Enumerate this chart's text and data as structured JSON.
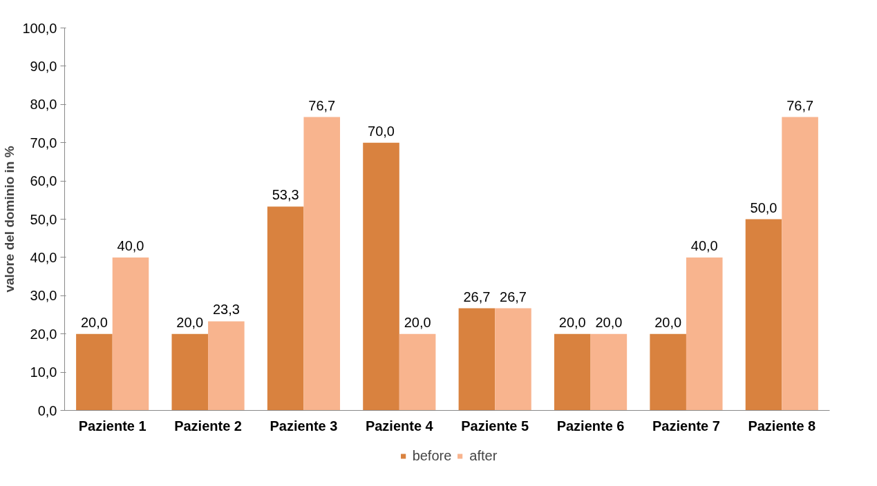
{
  "chart_data": {
    "type": "bar",
    "ylabel": "valore del dominio in %",
    "categories": [
      "Paziente 1",
      "Paziente 2",
      "Paziente 3",
      "Paziente 4",
      "Paziente 5",
      "Paziente 6",
      "Paziente 7",
      "Paziente 8"
    ],
    "series": [
      {
        "name": "before",
        "color": "#d9823f",
        "values": [
          20.0,
          20.0,
          53.3,
          70.0,
          26.7,
          20.0,
          20.0,
          50.0
        ],
        "value_labels": [
          "20,0",
          "20,0",
          "53,3",
          "70,0",
          "26,7",
          "20,0",
          "20,0",
          "50,0"
        ]
      },
      {
        "name": "after",
        "color": "#f8b48e",
        "values": [
          40.0,
          23.3,
          76.7,
          20.0,
          26.7,
          20.0,
          40.0,
          76.7
        ],
        "value_labels": [
          "40,0",
          "23,3",
          "76,7",
          "20,0",
          "26,7",
          "20,0",
          "40,0",
          "76,7"
        ]
      }
    ],
    "ylim": [
      0,
      100
    ],
    "yticks": [
      {
        "value": 0,
        "label": "0,0"
      },
      {
        "value": 10,
        "label": "10,0"
      },
      {
        "value": 20,
        "label": "20,0"
      },
      {
        "value": 30,
        "label": "30,0"
      },
      {
        "value": 40,
        "label": "40,0"
      },
      {
        "value": 50,
        "label": "50,0"
      },
      {
        "value": 60,
        "label": "60,0"
      },
      {
        "value": 70,
        "label": "70,0"
      },
      {
        "value": 80,
        "label": "80,0"
      },
      {
        "value": 90,
        "label": "90,0"
      },
      {
        "value": 100,
        "label": "100,0"
      }
    ],
    "grid": false,
    "legend": "bottom"
  }
}
